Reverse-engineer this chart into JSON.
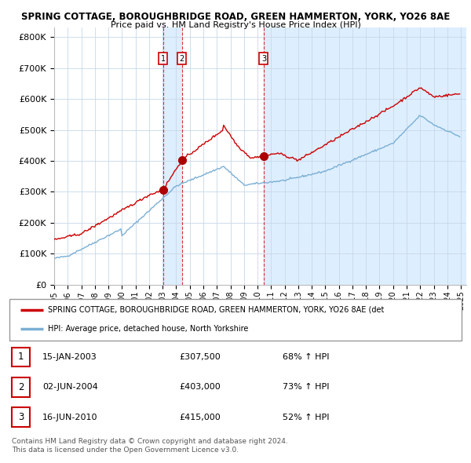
{
  "title1": "SPRING COTTAGE, BOROUGHBRIDGE ROAD, GREEN HAMMERTON, YORK, YO26 8AE",
  "title2": "Price paid vs. HM Land Registry's House Price Index (HPI)",
  "ylabel_ticks": [
    "£0",
    "£100K",
    "£200K",
    "£300K",
    "£400K",
    "£500K",
    "£600K",
    "£700K",
    "£800K"
  ],
  "ytick_vals": [
    0,
    100000,
    200000,
    300000,
    400000,
    500000,
    600000,
    700000,
    800000
  ],
  "ylim": [
    0,
    830000
  ],
  "xlim_start": 1995.0,
  "xlim_end": 2025.4,
  "transactions": [
    {
      "label": "1",
      "date_num": 2003.04,
      "price": 307500
    },
    {
      "label": "2",
      "date_num": 2004.42,
      "price": 403000
    },
    {
      "label": "3",
      "date_num": 2010.46,
      "price": 415000
    }
  ],
  "red_line_color": "#cc0000",
  "blue_line_color": "#7bafd4",
  "shade_color": "#ddeeff",
  "red_dot_color": "#aa0000",
  "legend_label_red": "SPRING COTTAGE, BOROUGHBRIDGE ROAD, GREEN HAMMERTON, YORK, YO26 8AE (det",
  "legend_label_blue": "HPI: Average price, detached house, North Yorkshire",
  "footnote1": "Contains HM Land Registry data © Crown copyright and database right 2024.",
  "footnote2": "This data is licensed under the Open Government Licence v3.0.",
  "table_rows": [
    [
      "1",
      "15-JAN-2003",
      "£307,500",
      "68% ↑ HPI"
    ],
    [
      "2",
      "02-JUN-2004",
      "£403,000",
      "73% ↑ HPI"
    ],
    [
      "3",
      "16-JUN-2010",
      "£415,000",
      "52% ↑ HPI"
    ]
  ]
}
